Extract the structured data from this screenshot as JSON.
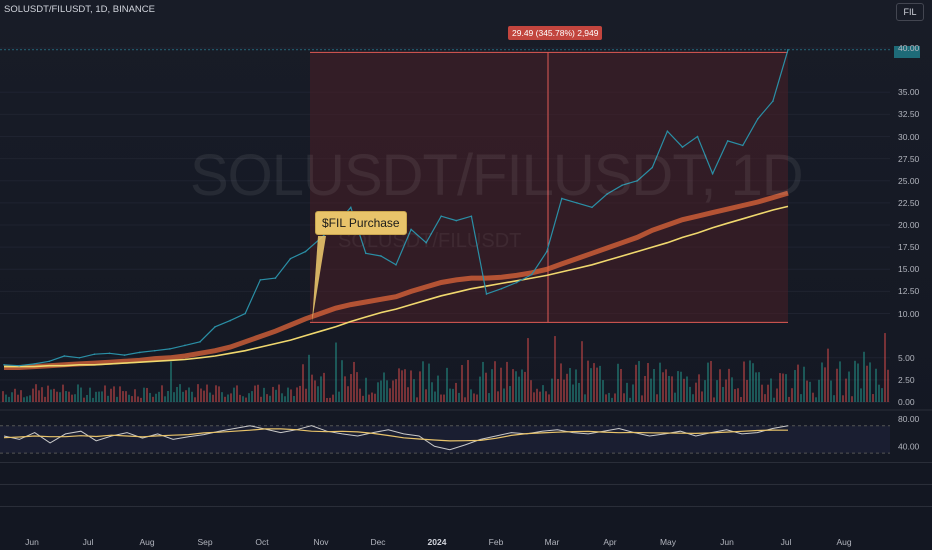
{
  "header": {
    "title": "SOLUSDT/FILUSDT, 1D, BINANCE",
    "symbol_box": "FIL"
  },
  "watermark": {
    "main": "SOLUSDT/FILUSDT, 1D",
    "secondary": "SOLUSDT/FILUSDT"
  },
  "annotations": {
    "callout": "$FIL Purchase",
    "range_label": "29.49 (345.78%) 2,949"
  },
  "colors": {
    "background": "#131722",
    "price_line": "#2a8fa6",
    "ma_fast": "#e0663a",
    "ma_slow": "#f0d86e",
    "rsi_line": "#c9c9c9",
    "rsi_ma": "#e8c36a",
    "range_fill": "#4a1f26",
    "range_line": "#e05a55"
  },
  "chart_data": {
    "type": "line",
    "x_ticks": [
      "Jun",
      "Jul",
      "Aug",
      "Sep",
      "Oct",
      "Nov",
      "Dec",
      "2024",
      "Feb",
      "Mar",
      "Apr",
      "May",
      "Jun",
      "Jul",
      "Aug"
    ],
    "y_ticks": [
      "40.00",
      "35.00",
      "32.50",
      "30.00",
      "27.50",
      "25.00",
      "22.50",
      "20.00",
      "17.50",
      "15.00",
      "12.50",
      "10.00",
      "5.00",
      "2.50",
      "0.00"
    ],
    "rsi_ticks": [
      "80.00",
      "40.00"
    ],
    "ylim": [
      0,
      40
    ],
    "series": [
      {
        "values": [
          4.2,
          4.1,
          4.3,
          4.6,
          5.2,
          5.0,
          5.4,
          5.5,
          5.3,
          5.6,
          5.8,
          6.0,
          6.4,
          6.8,
          8.5,
          9.2,
          10.0,
          13.8,
          14.0,
          16.2,
          17.0,
          18.5,
          20.0,
          22.0,
          16.8,
          16.5,
          15.5,
          19.5,
          18.0,
          21.0,
          20.5,
          21.0,
          12.2,
          12.8,
          13.5,
          14.4,
          17.0,
          23.0,
          22.5,
          22.0,
          23.5,
          24.5,
          25.0,
          26.5,
          30.6,
          28.8,
          30.0,
          25.8,
          29.5,
          29.0,
          32.0,
          34.0,
          39.8
        ]
      },
      {
        "values": [
          3.9,
          3.9,
          4.0,
          4.1,
          4.2,
          4.3,
          4.4,
          4.5,
          4.6,
          4.7,
          4.9,
          5.0,
          5.2,
          5.5,
          5.8,
          6.2,
          6.8,
          7.4,
          8.0,
          8.7,
          9.4,
          10.0,
          10.6,
          11.0,
          11.3,
          11.6,
          11.9,
          12.5,
          13.0,
          13.5,
          13.8,
          14.0,
          14.0,
          14.1,
          14.3,
          14.6,
          15.0,
          15.6,
          16.2,
          16.8,
          17.4,
          18.0,
          18.6,
          19.4,
          20.0,
          20.6,
          21.0,
          21.4,
          21.8,
          22.2,
          22.6,
          23.1,
          23.6
        ]
      },
      {
        "values": [
          4.0,
          4.0,
          4.0,
          4.1,
          4.1,
          4.2,
          4.2,
          4.3,
          4.4,
          4.5,
          4.6,
          4.7,
          4.8,
          5.0,
          5.2,
          5.5,
          5.8,
          6.2,
          6.6,
          7.0,
          7.5,
          8.0,
          8.5,
          9.1,
          9.6,
          10.1,
          10.5,
          11.0,
          11.5,
          12.0,
          12.4,
          12.8,
          13.1,
          13.4,
          13.7,
          14.0,
          14.3,
          14.7,
          15.1,
          15.5,
          16.0,
          16.5,
          17.0,
          17.5,
          18.0,
          18.6,
          19.1,
          19.7,
          20.2,
          20.7,
          21.2,
          21.7,
          22.1
        ]
      }
    ],
    "volume_hint": "histogram bars along bottom of price pane (values ~0-5)",
    "rsi": {
      "ylim": [
        20,
        90
      ],
      "values": [
        55,
        50,
        60,
        45,
        58,
        62,
        48,
        55,
        60,
        52,
        58,
        50,
        54,
        57,
        62,
        66,
        70,
        65,
        60,
        64,
        70,
        62,
        58,
        55,
        60,
        64,
        58,
        55,
        40,
        35,
        42,
        50,
        55,
        60,
        58,
        62,
        64,
        60,
        58,
        62,
        66,
        60,
        55,
        58,
        62,
        55,
        60,
        64,
        58,
        60,
        66,
        70
      ]
    }
  }
}
